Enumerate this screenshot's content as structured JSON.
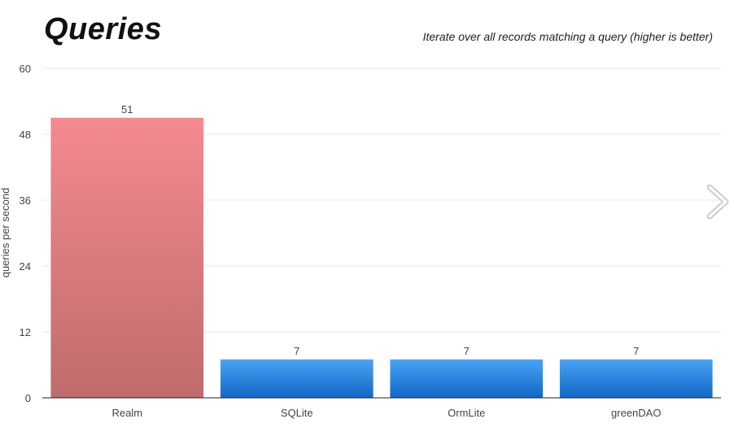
{
  "header": {
    "title": "Queries",
    "subtitle": "Iterate over all records matching a query (higher is better)"
  },
  "navigation": {
    "next_icon": "chevron-right-icon"
  },
  "chart_data": {
    "type": "bar",
    "title": "Queries",
    "subtitle": "Iterate over all records matching a query (higher is better)",
    "xlabel": "",
    "ylabel": "queries per second",
    "categories": [
      "Realm",
      "SQLite",
      "OrmLite",
      "greenDAO"
    ],
    "values": [
      51,
      7,
      7,
      7
    ],
    "ylim": [
      0,
      60
    ],
    "yticks": [
      0,
      12,
      24,
      36,
      48,
      60
    ],
    "grid": true,
    "legend": "none",
    "colors": {
      "highlight_top": "#f48a90",
      "highlight_bottom": "#bf6c6c",
      "default_top": "#4aa3f3",
      "default_bottom": "#1168c8",
      "grid": "#e8e8e8",
      "axis": "#222222"
    }
  }
}
